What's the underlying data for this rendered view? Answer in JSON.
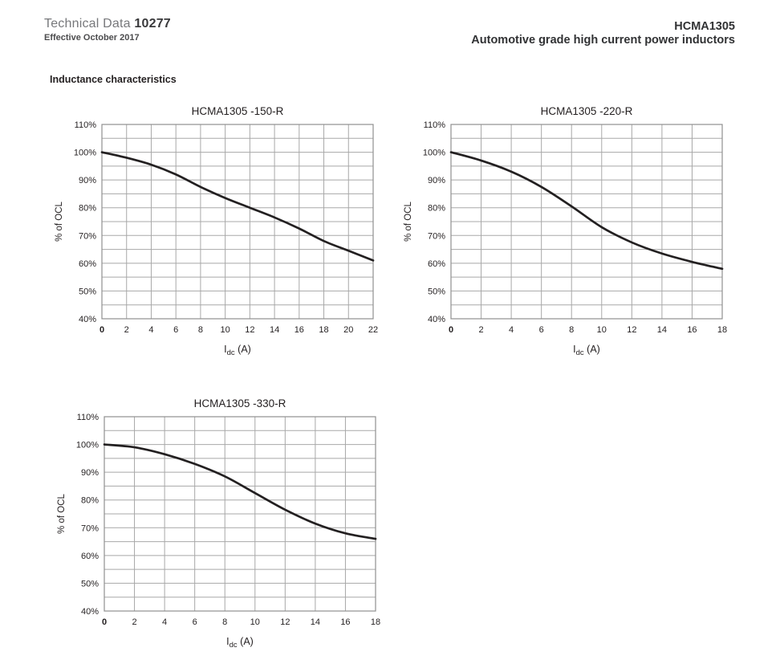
{
  "header": {
    "doc_type": "Technical Data",
    "doc_number": "10277",
    "effective": "Effective October 2017",
    "part_number": "HCMA1305",
    "product_line": "Automotive grade high current power inductors"
  },
  "section": {
    "title": "Inductance characteristics"
  },
  "colors": {
    "text_dark": "#231f20",
    "text_gray": "#77787b",
    "grid": "#a8a8a8",
    "plot_border": "#8f8f8f",
    "curve": "#232021"
  },
  "chart_data": [
    {
      "type": "line",
      "title": "HCMA1305 -150-R",
      "ylabel": "% of OCL",
      "xlabel_main": "I",
      "xlabel_sub": "dc",
      "xlabel_suffix": " (A)",
      "x": [
        0,
        2,
        4,
        6,
        8,
        10,
        12,
        14,
        16,
        18,
        20,
        22
      ],
      "values": [
        100,
        98,
        95.5,
        92,
        87.5,
        83.5,
        80,
        76.5,
        72.5,
        68,
        64.5,
        61
      ],
      "xlim": [
        0,
        22
      ],
      "ylim": [
        40,
        110
      ],
      "xticks": [
        0,
        2,
        4,
        6,
        8,
        10,
        12,
        14,
        16,
        18,
        20,
        22
      ],
      "yticks": [
        110,
        100,
        90,
        80,
        70,
        60,
        50,
        40
      ],
      "ytick_suffix": "%",
      "y_minor_step": 5,
      "x_grid_step": 2,
      "grid": true,
      "legend_position": "none"
    },
    {
      "type": "line",
      "title": "HCMA1305 -220-R",
      "ylabel": "% of OCL",
      "xlabel_main": "I",
      "xlabel_sub": "dc",
      "xlabel_suffix": " (A)",
      "x": [
        0,
        2,
        4,
        6,
        8,
        10,
        12,
        14,
        16,
        18
      ],
      "values": [
        100,
        97,
        93,
        87.5,
        80.5,
        73,
        67.5,
        63.5,
        60.5,
        58
      ],
      "xlim": [
        0,
        18
      ],
      "ylim": [
        40,
        110
      ],
      "xticks": [
        0,
        2,
        4,
        6,
        8,
        10,
        12,
        14,
        16,
        18
      ],
      "yticks": [
        110,
        100,
        90,
        80,
        70,
        60,
        50,
        40
      ],
      "ytick_suffix": "%",
      "y_minor_step": 5,
      "x_grid_step": 2,
      "grid": true,
      "legend_position": "none"
    },
    {
      "type": "line",
      "title": "HCMA1305 -330-R",
      "ylabel": "% of OCL",
      "xlabel_main": "I",
      "xlabel_sub": "dc",
      "xlabel_suffix": " (A)",
      "x": [
        0,
        2,
        4,
        6,
        8,
        10,
        12,
        14,
        16,
        18
      ],
      "values": [
        100,
        99,
        96.5,
        93,
        88.5,
        82.5,
        76.5,
        71.5,
        68,
        66
      ],
      "xlim": [
        0,
        18
      ],
      "ylim": [
        40,
        110
      ],
      "xticks": [
        0,
        2,
        4,
        6,
        8,
        10,
        12,
        14,
        16,
        18
      ],
      "yticks": [
        110,
        100,
        90,
        80,
        70,
        60,
        50,
        40
      ],
      "ytick_suffix": "%",
      "y_minor_step": 5,
      "x_grid_step": 2,
      "grid": true,
      "legend_position": "none"
    }
  ]
}
